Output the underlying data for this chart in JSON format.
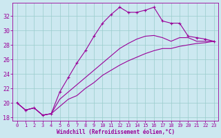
{
  "xlabel": "Windchill (Refroidissement éolien,°C)",
  "bg_color": "#cce8f0",
  "line_color": "#990099",
  "grid_color": "#99cccc",
  "xlim": [
    -0.5,
    23.5
  ],
  "ylim": [
    17.5,
    33.8
  ],
  "yticks": [
    18,
    20,
    22,
    24,
    26,
    28,
    30,
    32
  ],
  "xticks": [
    0,
    1,
    2,
    3,
    4,
    5,
    6,
    7,
    8,
    9,
    10,
    11,
    12,
    13,
    14,
    15,
    16,
    17,
    18,
    19,
    20,
    21,
    22,
    23
  ],
  "curve1_x": [
    0,
    1,
    2,
    3,
    4,
    5,
    6,
    7,
    8,
    9,
    10,
    11,
    12,
    13,
    14,
    15,
    16,
    17,
    18,
    19,
    20,
    21,
    22,
    23
  ],
  "curve1_y": [
    20.0,
    19.0,
    19.3,
    18.3,
    18.5,
    21.5,
    23.5,
    25.5,
    27.2,
    29.2,
    31.0,
    32.2,
    33.2,
    32.5,
    32.5,
    32.8,
    33.2,
    31.3,
    31.0,
    31.0,
    29.2,
    29.0,
    28.8,
    28.5
  ],
  "curve2_x": [
    0,
    1,
    2,
    3,
    4,
    5,
    6,
    7,
    8,
    9,
    10,
    11,
    12,
    13,
    14,
    15,
    16,
    17,
    18,
    19,
    20,
    21,
    22,
    23
  ],
  "curve2_y": [
    20.0,
    19.0,
    19.3,
    18.3,
    18.5,
    20.5,
    21.5,
    22.5,
    23.5,
    24.5,
    25.5,
    26.5,
    27.5,
    28.2,
    28.8,
    29.2,
    29.3,
    29.0,
    28.5,
    29.0,
    29.0,
    28.5,
    28.5,
    28.5
  ],
  "curve3_x": [
    0,
    1,
    2,
    3,
    4,
    5,
    6,
    7,
    8,
    9,
    10,
    11,
    12,
    13,
    14,
    15,
    16,
    17,
    18,
    19,
    20,
    21,
    22,
    23
  ],
  "curve3_y": [
    20.0,
    19.0,
    19.3,
    18.3,
    18.5,
    19.5,
    20.5,
    21.0,
    22.0,
    22.8,
    23.8,
    24.5,
    25.2,
    25.8,
    26.3,
    26.8,
    27.2,
    27.5,
    27.5,
    27.8,
    28.0,
    28.2,
    28.3,
    28.5
  ]
}
